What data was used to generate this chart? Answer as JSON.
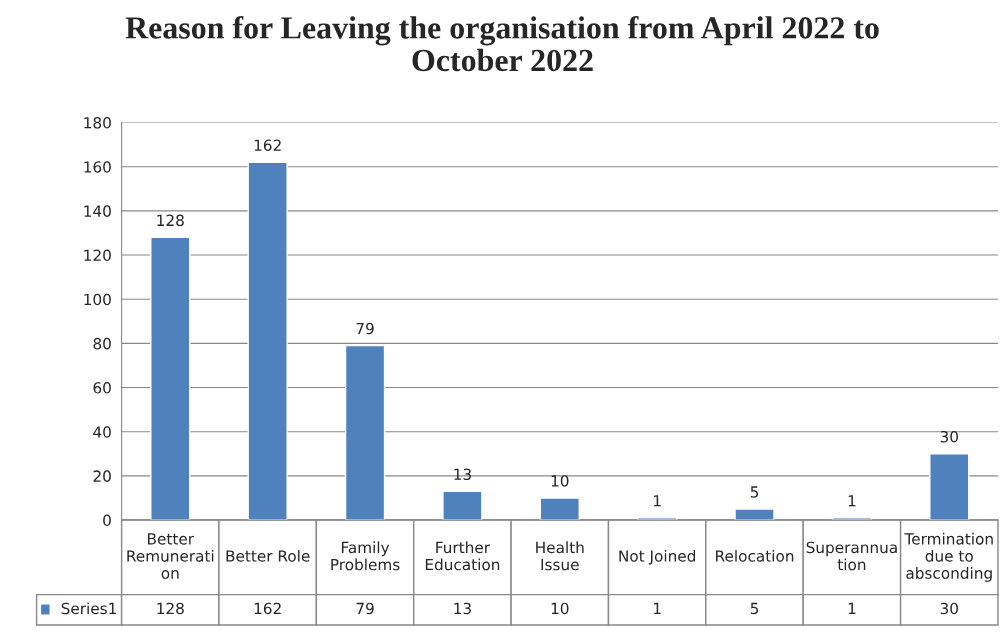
{
  "chart_data": {
    "type": "bar",
    "title": "Reason for Leaving the organisation from April 2022 to October 2022",
    "categories": [
      "Better Remuneration",
      "Better Role",
      "Family Problems",
      "Further Education",
      "Health Issue",
      "Not Joined",
      "Relocation",
      "Superannuation",
      "Termination due to absconding"
    ],
    "series": [
      {
        "name": "Series1",
        "color": "#4f81bd",
        "values": [
          128,
          162,
          79,
          13,
          10,
          1,
          5,
          1,
          30
        ],
        "value_labels": [
          "128",
          "162",
          "79",
          "13",
          "10",
          "1",
          "5",
          "1",
          "30"
        ]
      }
    ],
    "ylim": [
      0,
      180
    ],
    "yticks": [
      0,
      20,
      40,
      60,
      80,
      100,
      120,
      140,
      160,
      180
    ],
    "grid": "y",
    "legend": "bottom"
  }
}
